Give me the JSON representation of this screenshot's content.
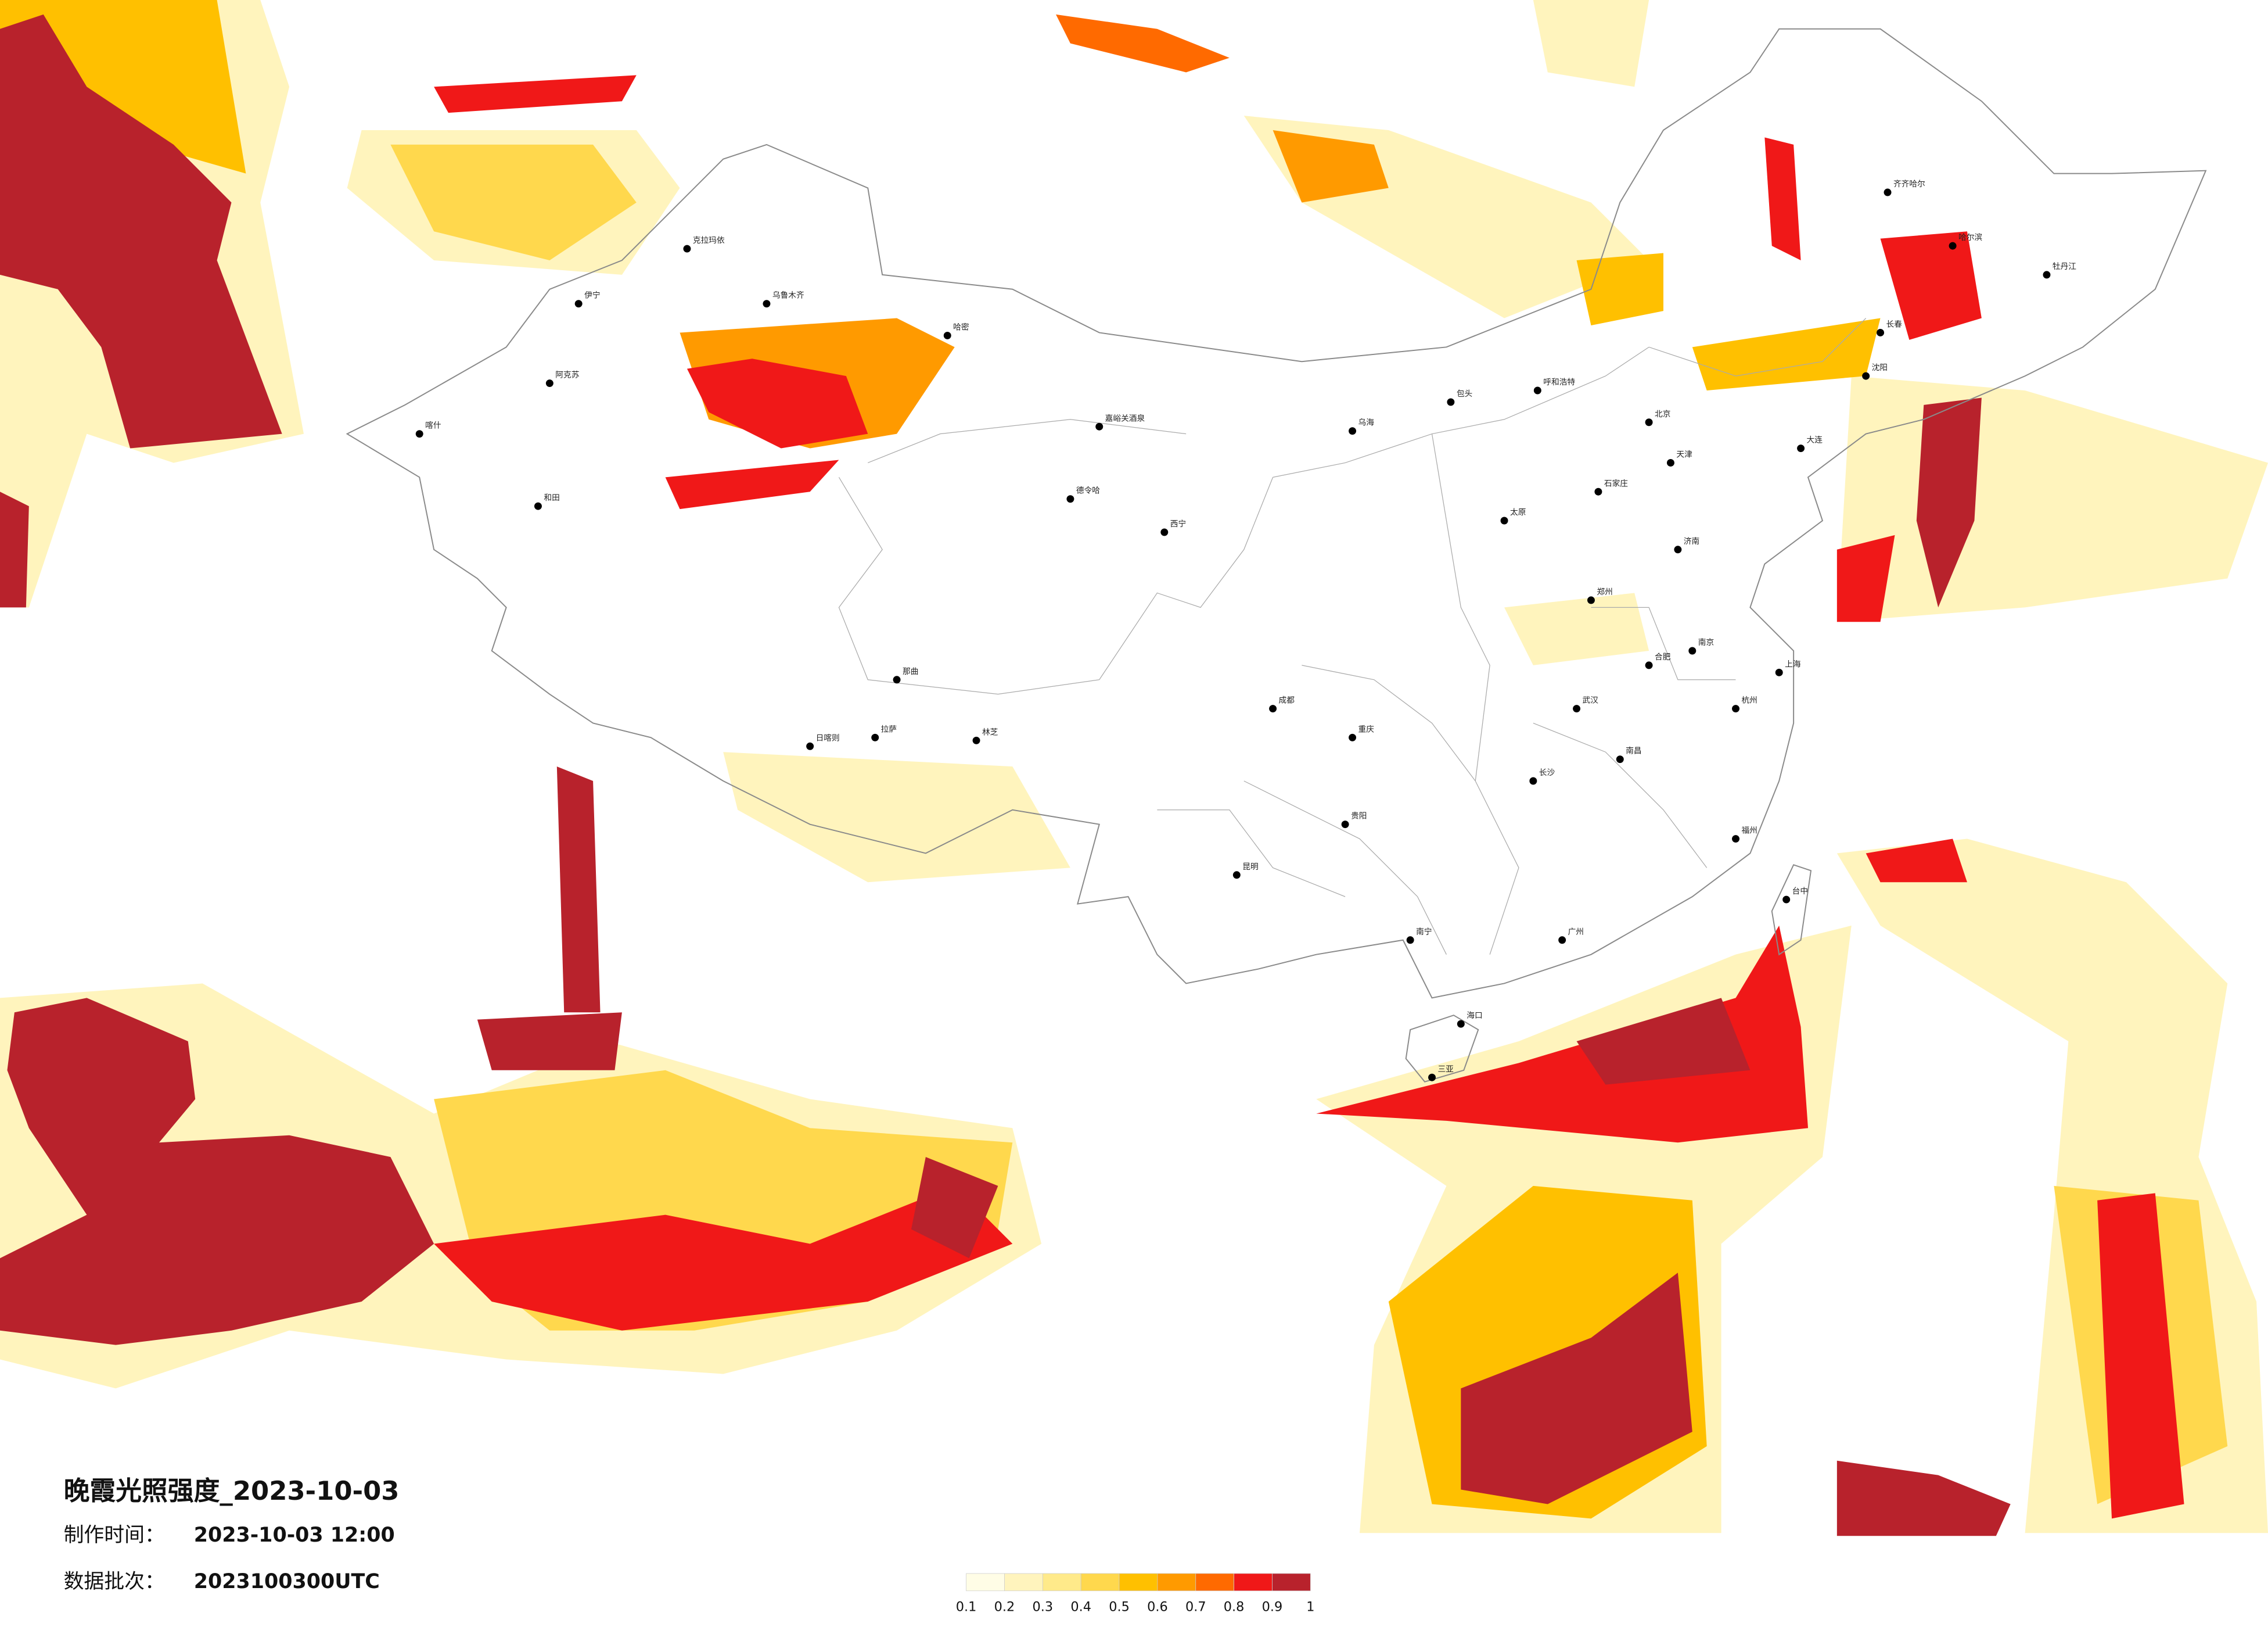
{
  "title": "晚霞光照强度_2023-10-03",
  "produced": {
    "label": "制作时间：",
    "value": "2023-10-03 12:00"
  },
  "batch": {
    "label": "数据批次：",
    "value": "2023100300UTC"
  },
  "legend": {
    "colors": [
      "#fffde6",
      "#fff4bd",
      "#ffea8a",
      "#ffd84d",
      "#ffc000",
      "#ff9a00",
      "#ff6a00",
      "#f01818",
      "#b8222c"
    ],
    "ticks": [
      0.1,
      0.2,
      0.3,
      0.4,
      0.5,
      0.6,
      0.7,
      0.8,
      0.9,
      1
    ]
  },
  "cities": [
    "克拉玛依",
    "乌鲁木齐",
    "伊宁",
    "阿克苏",
    "和田",
    "喀什",
    "哈密",
    "嘉峪关酒泉",
    "德令哈",
    "拉萨",
    "日喀则",
    "林芝",
    "那曲",
    "西宁",
    "乌海",
    "呼和浩特",
    "包头",
    "北京",
    "天津",
    "石家庄",
    "太原",
    "济南",
    "郑州",
    "武汉",
    "长沙",
    "南昌",
    "合肥",
    "南京",
    "上海",
    "杭州",
    "福州",
    "广州",
    "南宁",
    "海口",
    "贵阳",
    "昆明",
    "成都",
    "重庆",
    "哈尔滨",
    "长春",
    "沈阳",
    "大连",
    "齐齐哈尔",
    "台中",
    "三亚",
    "牡丹江"
  ]
}
